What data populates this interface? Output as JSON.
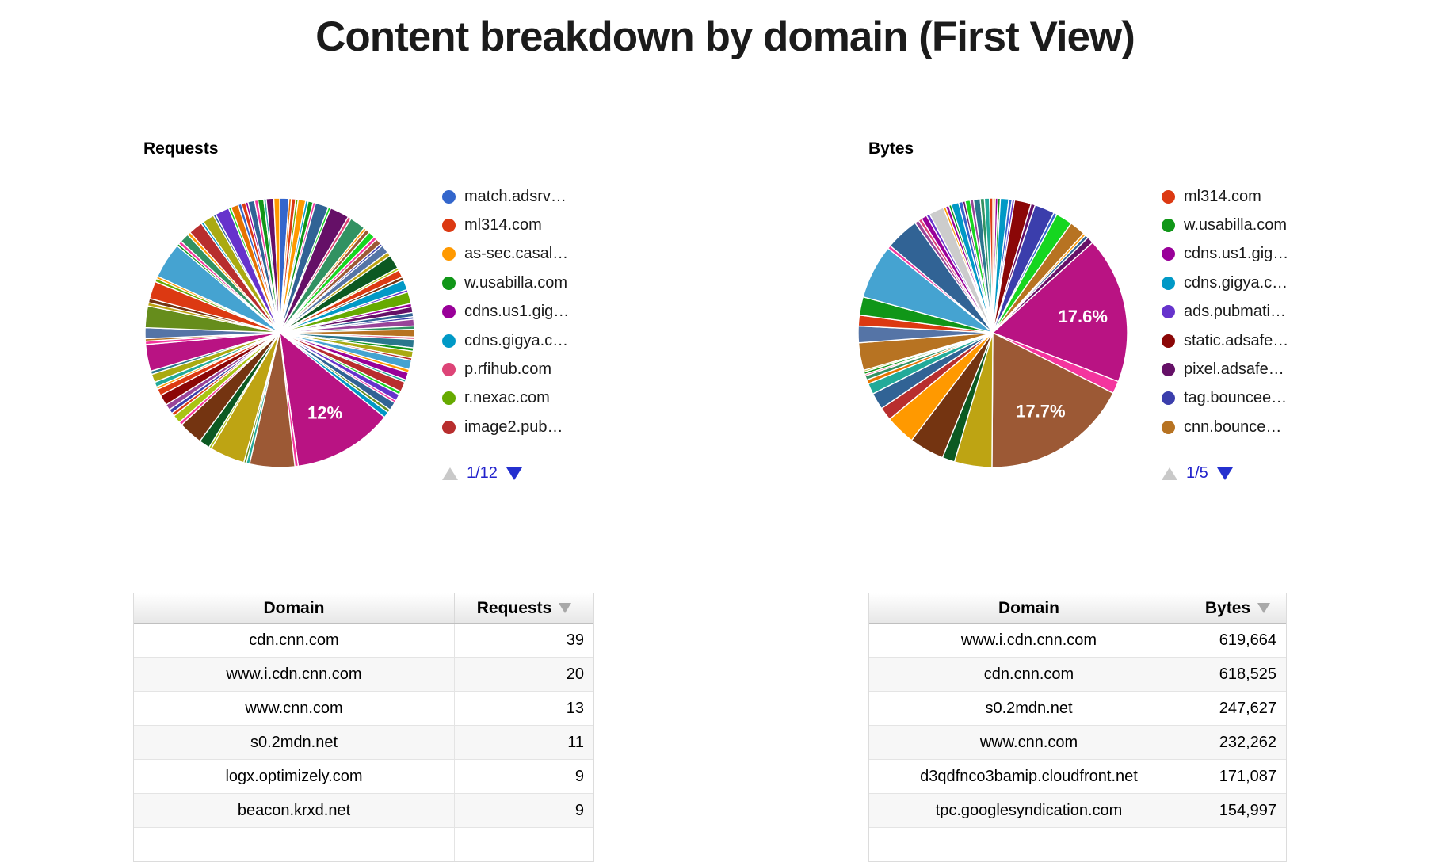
{
  "page_title": "Content breakdown by domain (First View)",
  "palette": [
    "#3366CC",
    "#DC3912",
    "#FF9900",
    "#109618",
    "#990099",
    "#0099C6",
    "#DD4477",
    "#66AA00",
    "#B82E2E",
    "#316395",
    "#994499",
    "#22AA99",
    "#AAAA11",
    "#6633CC",
    "#E67300",
    "#8B0707",
    "#651067",
    "#329262",
    "#5574A6",
    "#3B3EAC",
    "#B77322",
    "#16D620",
    "#B91383",
    "#F4359E",
    "#9C5935",
    "#A9C413",
    "#2A778D",
    "#668D1C",
    "#BEA413",
    "#0C5922",
    "#743411",
    "#45A3D1",
    "#CCCCCC"
  ],
  "chart_data": [
    {
      "id": "requests",
      "type": "pie",
      "title": "Requests",
      "units": "percent of total requests",
      "labeled_slices": [
        {
          "label": "12%",
          "value": 12,
          "color": "#B91383"
        }
      ],
      "legend": [
        {
          "label": "match.adsrv…",
          "color": "#3366CC"
        },
        {
          "label": "ml314.com",
          "color": "#DC3912"
        },
        {
          "label": "as-sec.casal…",
          "color": "#FF9900"
        },
        {
          "label": "w.usabilla.com",
          "color": "#109618"
        },
        {
          "label": "cdns.us1.gig…",
          "color": "#990099"
        },
        {
          "label": "cdns.gigya.c…",
          "color": "#0099C6"
        },
        {
          "label": "p.rfihub.com",
          "color": "#DD4477"
        },
        {
          "label": "r.nexac.com",
          "color": "#66AA00"
        },
        {
          "label": "image2.pub…",
          "color": "#B82E2E"
        }
      ],
      "pagination": {
        "label": "1/12",
        "prev_enabled": false,
        "next_enabled": true
      },
      "slices": [
        [
          1.1,
          0
        ],
        [
          0.3,
          14
        ],
        [
          0.5,
          1
        ],
        [
          0.3,
          7
        ],
        [
          0.9,
          2
        ],
        [
          0.3,
          5
        ],
        [
          0.6,
          3
        ],
        [
          0.3,
          23
        ],
        [
          1.6,
          9
        ],
        [
          0.3,
          21
        ],
        [
          2.3,
          16
        ],
        [
          0.4,
          6
        ],
        [
          1.9,
          17
        ],
        [
          0.3,
          2
        ],
        [
          0.5,
          24
        ],
        [
          0.8,
          21
        ],
        [
          0.4,
          23
        ],
        [
          0.7,
          24
        ],
        [
          0.3,
          19
        ],
        [
          1.0,
          18
        ],
        [
          0.5,
          28
        ],
        [
          1.7,
          29
        ],
        [
          0.3,
          25
        ],
        [
          0.9,
          1
        ],
        [
          0.4,
          30
        ],
        [
          1.2,
          5
        ],
        [
          0.3,
          13
        ],
        [
          1.4,
          7
        ],
        [
          0.4,
          4
        ],
        [
          0.7,
          16
        ],
        [
          0.5,
          9
        ],
        [
          0.3,
          19
        ],
        [
          0.8,
          10
        ],
        [
          0.4,
          17
        ],
        [
          0.9,
          20
        ],
        [
          0.3,
          6
        ],
        [
          1.0,
          26
        ],
        [
          0.4,
          3
        ],
        [
          0.8,
          12
        ],
        [
          0.3,
          8
        ],
        [
          1.1,
          31
        ],
        [
          0.4,
          2
        ],
        [
          0.9,
          4
        ],
        [
          0.3,
          11
        ],
        [
          1.2,
          8
        ],
        [
          0.4,
          21
        ],
        [
          0.8,
          13
        ],
        [
          0.3,
          23
        ],
        [
          1.0,
          9
        ],
        [
          0.4,
          27
        ],
        [
          0.7,
          5
        ],
        [
          12.0,
          22,
          "12%"
        ],
        [
          0.4,
          23
        ],
        [
          5.4,
          24
        ],
        [
          0.4,
          11
        ],
        [
          0.3,
          27
        ],
        [
          4.2,
          28
        ],
        [
          0.3,
          25
        ],
        [
          1.3,
          29
        ],
        [
          2.9,
          30
        ],
        [
          0.4,
          23
        ],
        [
          1.0,
          25
        ],
        [
          0.4,
          1
        ],
        [
          0.5,
          19
        ],
        [
          0.7,
          10
        ],
        [
          1.3,
          15
        ],
        [
          0.8,
          1
        ],
        [
          0.3,
          2
        ],
        [
          0.6,
          11
        ],
        [
          1.0,
          12
        ],
        [
          0.4,
          26
        ],
        [
          3.2,
          22
        ],
        [
          0.4,
          23
        ],
        [
          0.3,
          20
        ],
        [
          1.3,
          18
        ],
        [
          2.6,
          27
        ],
        [
          0.4,
          28
        ],
        [
          0.5,
          30
        ],
        [
          2.1,
          1
        ],
        [
          0.4,
          7
        ],
        [
          0.3,
          2
        ],
        [
          4.3,
          31
        ],
        [
          0.3,
          3
        ],
        [
          0.4,
          23
        ],
        [
          1.1,
          17
        ],
        [
          0.4,
          2
        ],
        [
          1.7,
          8
        ],
        [
          0.3,
          5
        ],
        [
          1.4,
          12
        ],
        [
          0.3,
          9
        ],
        [
          1.7,
          13
        ],
        [
          0.3,
          21
        ],
        [
          0.9,
          14
        ],
        [
          0.4,
          0
        ],
        [
          0.5,
          1
        ],
        [
          0.3,
          4
        ],
        [
          0.8,
          9
        ],
        [
          0.4,
          23
        ],
        [
          0.7,
          3
        ],
        [
          0.3,
          11
        ],
        [
          0.9,
          16
        ],
        [
          0.7,
          2
        ]
      ]
    },
    {
      "id": "bytes",
      "type": "pie",
      "title": "Bytes",
      "units": "percent of total bytes",
      "labeled_slices": [
        {
          "label": "17.6%",
          "value": 17.6,
          "color": "#B91383"
        },
        {
          "label": "17.7%",
          "value": 17.7,
          "color": "#9C5935"
        }
      ],
      "legend": [
        {
          "label": "ml314.com",
          "color": "#DC3912"
        },
        {
          "label": "w.usabilla.com",
          "color": "#109618"
        },
        {
          "label": "cdns.us1.gig…",
          "color": "#990099"
        },
        {
          "label": "cdns.gigya.c…",
          "color": "#0099C6"
        },
        {
          "label": "ads.pubmati…",
          "color": "#6633CC"
        },
        {
          "label": "static.adsafe…",
          "color": "#8B0707"
        },
        {
          "label": "pixel.adsafe…",
          "color": "#651067"
        },
        {
          "label": "tag.bouncee…",
          "color": "#3B3EAC"
        },
        {
          "label": "cnn.bounce…",
          "color": "#B77322"
        }
      ],
      "pagination": {
        "label": "1/5",
        "prev_enabled": false,
        "next_enabled": true
      },
      "slices": [
        [
          0.3,
          2
        ],
        [
          0.3,
          4
        ],
        [
          0.3,
          3
        ],
        [
          1.0,
          5
        ],
        [
          0.4,
          0
        ],
        [
          0.3,
          13
        ],
        [
          2.0,
          15
        ],
        [
          0.5,
          16
        ],
        [
          2.4,
          19
        ],
        [
          0.4,
          0
        ],
        [
          2.0,
          21
        ],
        [
          1.9,
          20
        ],
        [
          0.3,
          2
        ],
        [
          0.4,
          9
        ],
        [
          0.8,
          16
        ],
        [
          17.6,
          22,
          "17.6%"
        ],
        [
          1.5,
          23
        ],
        [
          17.7,
          24,
          "17.7%"
        ],
        [
          4.5,
          28
        ],
        [
          1.5,
          29
        ],
        [
          4.2,
          30
        ],
        [
          3.6,
          2
        ],
        [
          1.6,
          8
        ],
        [
          2.0,
          9
        ],
        [
          1.3,
          11
        ],
        [
          0.5,
          14
        ],
        [
          0.5,
          17
        ],
        [
          0.2,
          6
        ],
        [
          0.3,
          3
        ],
        [
          0.2,
          12
        ],
        [
          3.3,
          20
        ],
        [
          2.0,
          18
        ],
        [
          1.3,
          1
        ],
        [
          2.2,
          3
        ],
        [
          6.5,
          31
        ],
        [
          0.4,
          23
        ],
        [
          4.0,
          9
        ],
        [
          0.5,
          10
        ],
        [
          0.4,
          6
        ],
        [
          0.7,
          4
        ],
        [
          0.4,
          13
        ],
        [
          1.8,
          32
        ],
        [
          0.3,
          2
        ],
        [
          0.4,
          4
        ],
        [
          0.3,
          3
        ],
        [
          0.9,
          5
        ],
        [
          0.5,
          0
        ],
        [
          0.3,
          16
        ],
        [
          0.6,
          21
        ],
        [
          0.4,
          10
        ],
        [
          0.8,
          26
        ],
        [
          0.5,
          17
        ],
        [
          0.6,
          11
        ],
        [
          0.4,
          1
        ]
      ]
    }
  ],
  "tables": [
    {
      "id": "requests-table",
      "columns": [
        {
          "label": "Domain"
        },
        {
          "label": "Requests",
          "sorted": "desc"
        }
      ],
      "rows": [
        [
          "cdn.cnn.com",
          "39"
        ],
        [
          "www.i.cdn.cnn.com",
          "20"
        ],
        [
          "www.cnn.com",
          "13"
        ],
        [
          "s0.2mdn.net",
          "11"
        ],
        [
          "logx.optimizely.com",
          "9"
        ],
        [
          "beacon.krxd.net",
          "9"
        ]
      ],
      "partial_next_row": true
    },
    {
      "id": "bytes-table",
      "columns": [
        {
          "label": "Domain"
        },
        {
          "label": "Bytes",
          "sorted": "desc"
        }
      ],
      "rows": [
        [
          "www.i.cdn.cnn.com",
          "619,664"
        ],
        [
          "cdn.cnn.com",
          "618,525"
        ],
        [
          "s0.2mdn.net",
          "247,627"
        ],
        [
          "www.cnn.com",
          "232,262"
        ],
        [
          "d3qdfnco3bamip.cloudfront.net",
          "171,087"
        ],
        [
          "tpc.googlesyndication.com",
          "154,997"
        ]
      ],
      "partial_next_row": true
    }
  ]
}
